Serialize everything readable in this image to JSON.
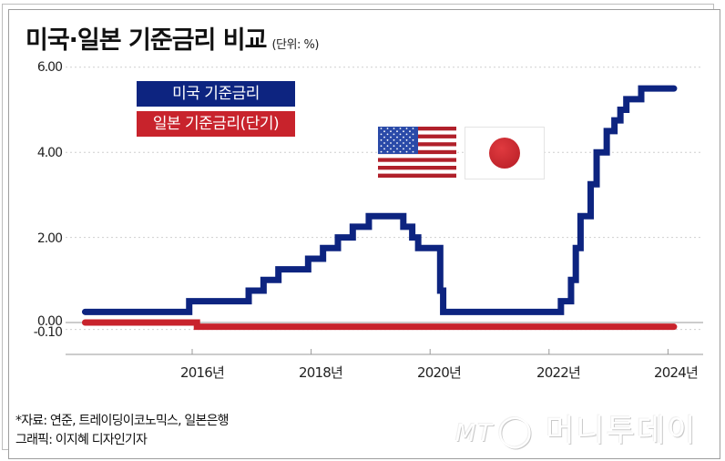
{
  "title": "미국·일본 기준금리 비교",
  "unit": "(단위: %)",
  "legend": {
    "us": "미국 기준금리",
    "jp": "일본 기준금리(단기)"
  },
  "colors": {
    "us": "#0d2480",
    "jp": "#c8232c",
    "grid": "#cfcfcf",
    "axis": "#9a9a9a"
  },
  "yticks": [
    "6.00",
    "4.00",
    "2.00",
    "0.00",
    "-0.10"
  ],
  "xticks": [
    "2016년",
    "2018년",
    "2020년",
    "2022년",
    "2024년"
  ],
  "source": {
    "line1": "*자료: 연준, 트레이딩이코노믹스, 일본은행",
    "line2": "그래픽: 이지혜 디자인기자"
  },
  "watermark": {
    "logo": "MT",
    "name": "머니투데이"
  },
  "chart_data": {
    "type": "line",
    "title": "미국·일본 기준금리 비교",
    "subtitle": "(단위: %)",
    "xlabel": "",
    "ylabel": "%",
    "ylim": [
      -0.6,
      6.0
    ],
    "xlim": [
      2014.2,
      2024.6
    ],
    "grid": true,
    "legend_position": "upper-left",
    "step": true,
    "series": [
      {
        "name": "미국 기준금리",
        "color": "#0d2480",
        "x": [
          2014.2,
          2015.95,
          2016.95,
          2017.2,
          2017.45,
          2017.95,
          2018.2,
          2018.45,
          2018.7,
          2018.97,
          2019.55,
          2019.7,
          2019.8,
          2020.17,
          2020.22,
          2022.2,
          2022.37,
          2022.45,
          2022.53,
          2022.7,
          2022.8,
          2022.97,
          2023.1,
          2023.2,
          2023.3,
          2023.55,
          2024.1
        ],
        "values": [
          0.25,
          0.5,
          0.75,
          1.0,
          1.25,
          1.5,
          1.75,
          2.0,
          2.25,
          2.5,
          2.25,
          2.0,
          1.75,
          0.75,
          0.25,
          0.5,
          1.0,
          1.75,
          2.5,
          3.25,
          4.0,
          4.5,
          4.75,
          5.0,
          5.25,
          5.5,
          5.5
        ]
      },
      {
        "name": "일본 기준금리(단기)",
        "color": "#c8232c",
        "x": [
          2014.2,
          2016.08,
          2024.1
        ],
        "values": [
          0.0,
          -0.1,
          -0.1
        ]
      }
    ]
  }
}
